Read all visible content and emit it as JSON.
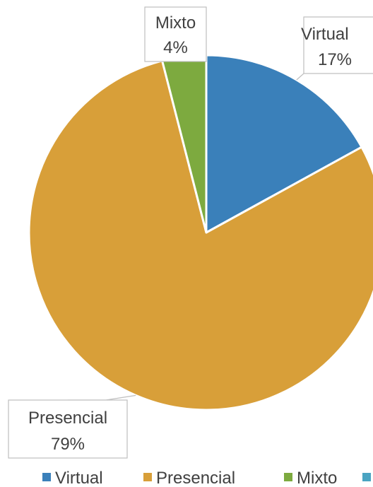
{
  "chart_data": {
    "type": "pie",
    "categories": [
      "Virtual",
      "Presencial",
      "Mixto"
    ],
    "values": [
      17,
      79,
      4
    ],
    "data_labels": [
      {
        "name": "Virtual",
        "percent": "17%"
      },
      {
        "name": "Presencial",
        "percent": "79%"
      },
      {
        "name": "Mixto",
        "percent": "4%"
      }
    ],
    "colors": [
      "#3A80BA",
      "#D89F39",
      "#7DAA3F",
      "#4AA4C2"
    ],
    "legend": {
      "position": "bottom",
      "entries": [
        "Virtual",
        "Presencial",
        "Mixto",
        ""
      ]
    }
  }
}
